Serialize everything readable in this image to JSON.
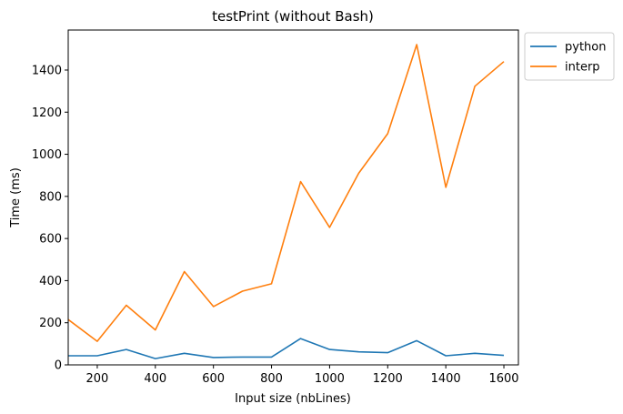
{
  "chart_data": {
    "type": "line",
    "title": "testPrint (without Bash)",
    "xlabel": "Input size (nbLines)",
    "ylabel": "Time (ms)",
    "xlim": [
      100,
      1650
    ],
    "ylim": [
      0,
      1590
    ],
    "xticks": [
      200,
      400,
      600,
      800,
      1000,
      1200,
      1400,
      1600
    ],
    "yticks": [
      0,
      200,
      400,
      600,
      800,
      1000,
      1200,
      1400
    ],
    "x": [
      100,
      200,
      300,
      400,
      500,
      600,
      700,
      800,
      900,
      1000,
      1100,
      1200,
      1300,
      1400,
      1500,
      1600
    ],
    "series": [
      {
        "name": "python",
        "color": "#1f77b4",
        "values": [
          43,
          43,
          73,
          30,
          55,
          35,
          37,
          37,
          125,
          73,
          62,
          58,
          115,
          43,
          55,
          45
        ]
      },
      {
        "name": "interp",
        "color": "#ff7f0e",
        "values": [
          215,
          112,
          283,
          166,
          443,
          277,
          350,
          385,
          870,
          653,
          910,
          1098,
          1521,
          843,
          1323,
          1440
        ]
      }
    ],
    "grid": false,
    "legend_position": "outside upper right"
  }
}
